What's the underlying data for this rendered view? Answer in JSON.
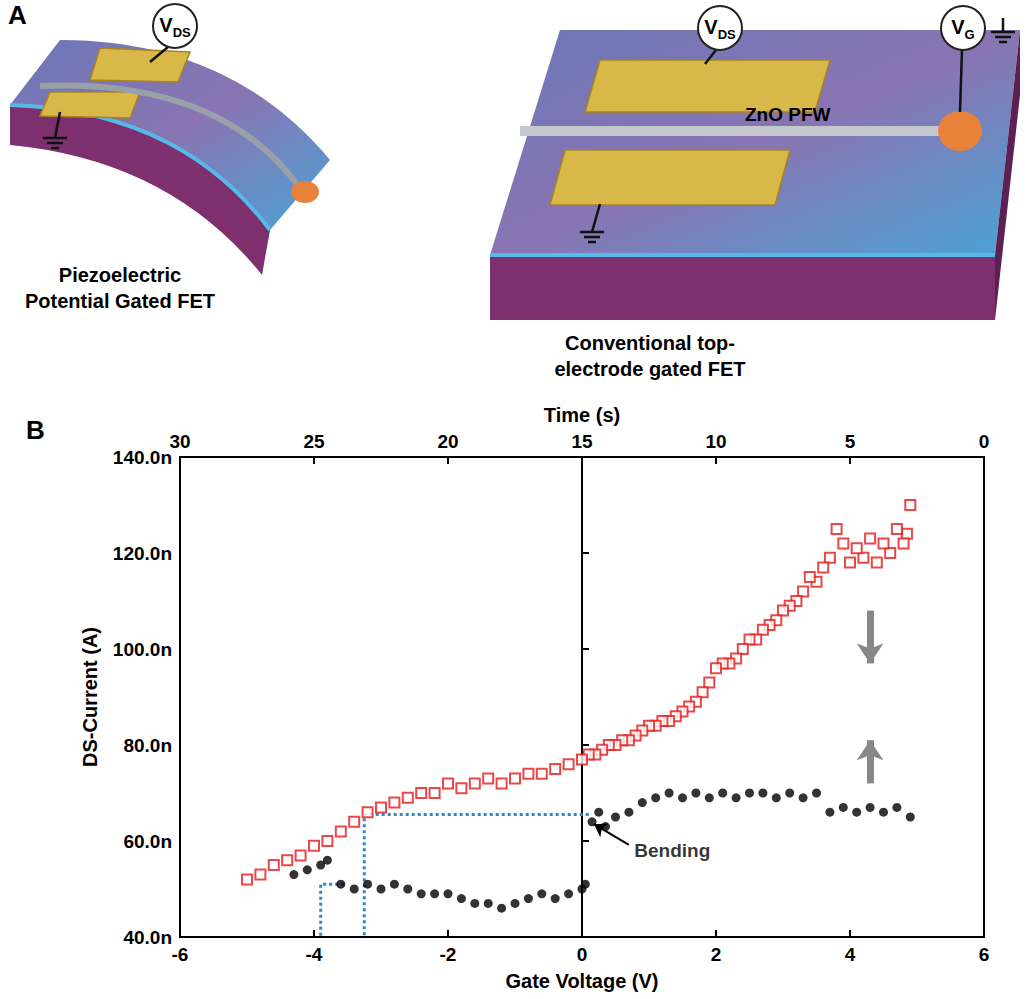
{
  "panel_a": {
    "letter": "A",
    "left": {
      "meter": {
        "main": "V",
        "sub": "DS"
      },
      "caption": [
        "Piezoelectric",
        "Potential Gated FET"
      ]
    },
    "right": {
      "meters": [
        {
          "main": "V",
          "sub": "DS"
        },
        {
          "main": "V",
          "sub": "G"
        }
      ],
      "wire_label": "ZnO PFW",
      "caption": [
        "Conventional top-",
        "electrode gated FET"
      ]
    }
  },
  "chart_data": {
    "letter": "B",
    "type": "scatter",
    "x_label": "Gate Voltage (V)",
    "x2_label": "Time (s)",
    "y_label": "DS-Current (A)",
    "xlim": [
      -6,
      6
    ],
    "xticks": [
      -6,
      -4,
      -2,
      0,
      2,
      4,
      6
    ],
    "x2lim": [
      30,
      0
    ],
    "x2ticks": [
      30,
      25,
      20,
      15,
      10,
      5,
      0
    ],
    "ylim": [
      40,
      140
    ],
    "yticks": [
      {
        "value": 40,
        "label": "40.0n"
      },
      {
        "value": 60,
        "label": "60.0n"
      },
      {
        "value": 80,
        "label": "80.0n"
      },
      {
        "value": 100,
        "label": "100.0n"
      },
      {
        "value": 120,
        "label": "120.0n"
      },
      {
        "value": 140,
        "label": "140.0n"
      }
    ],
    "grid": false,
    "series": [
      {
        "color": "#e31a1c",
        "marker": "square_open",
        "x": [
          4.9,
          4.85,
          4.8,
          4.7,
          4.6,
          4.5,
          4.4,
          4.3,
          4.2,
          4.1,
          4.0,
          3.9,
          3.8,
          3.7,
          3.6,
          3.5,
          3.4,
          3.3,
          3.2,
          3.1,
          3.0,
          2.9,
          2.8,
          2.7,
          2.6,
          2.5,
          2.4,
          2.3,
          2.2,
          2.1,
          2.0,
          1.9,
          1.8,
          1.7,
          1.6,
          1.5,
          1.4,
          1.3,
          1.2,
          1.1,
          1.0,
          0.9,
          0.8,
          0.7,
          0.6,
          0.5,
          0.4,
          0.3,
          0.2,
          0.1,
          0.0,
          -0.2,
          -0.4,
          -0.6,
          -0.8,
          -1.0,
          -1.2,
          -1.4,
          -1.6,
          -1.8,
          -2.0,
          -2.2,
          -2.4,
          -2.6,
          -2.8,
          -3.0,
          -3.2,
          -3.4,
          -3.6,
          -3.8,
          -4.0,
          -4.2,
          -4.4,
          -4.6,
          -4.8,
          -5.0
        ],
        "values": [
          130,
          124,
          122,
          125,
          120,
          122,
          118,
          123,
          119,
          121,
          118,
          122,
          125,
          119,
          117,
          114,
          115,
          112,
          110,
          109,
          108,
          106,
          105,
          104,
          102,
          102,
          100,
          98,
          97,
          97,
          96,
          93,
          91,
          89,
          88,
          87,
          86,
          85,
          85,
          84,
          84,
          83,
          82,
          81,
          81,
          80,
          80,
          79,
          78,
          78,
          77,
          76,
          75,
          74,
          74,
          73,
          72,
          73,
          72,
          71,
          72,
          70,
          70,
          69,
          68,
          67,
          66,
          64,
          62,
          60,
          59,
          57,
          56,
          55,
          53,
          52
        ]
      },
      {
        "color": "#000000",
        "marker": "circle_filled",
        "x": [
          -4.3,
          -4.1,
          -3.9,
          -3.8,
          -3.6,
          -3.4,
          -3.2,
          -3.0,
          -2.8,
          -2.6,
          -2.4,
          -2.2,
          -2.0,
          -1.8,
          -1.6,
          -1.4,
          -1.2,
          -1.0,
          -0.8,
          -0.6,
          -0.4,
          -0.2,
          0.0,
          0.05,
          0.15,
          0.25,
          0.35,
          0.5,
          0.7,
          0.9,
          1.1,
          1.3,
          1.5,
          1.7,
          1.9,
          2.1,
          2.3,
          2.5,
          2.7,
          2.9,
          3.1,
          3.3,
          3.5,
          3.7,
          3.9,
          4.1,
          4.3,
          4.5,
          4.7,
          4.9
        ],
        "values": [
          53,
          54,
          55,
          56,
          51,
          50,
          51,
          50,
          51,
          50,
          49,
          49,
          49,
          48,
          47,
          47,
          46,
          47,
          48,
          49,
          48,
          49,
          50,
          51,
          64,
          66,
          63,
          65,
          66,
          68,
          69,
          70,
          69,
          70,
          69,
          70,
          69,
          70,
          70,
          69,
          70,
          69,
          70,
          66,
          67,
          66,
          67,
          66,
          67,
          65
        ]
      }
    ],
    "guides": [
      {
        "color": "#2f86d6",
        "line_style": "dotted",
        "x": [
          0.1,
          -3.25,
          -3.25
        ],
        "y": [
          65.5,
          65.5,
          40
        ]
      },
      {
        "color": "#2f86d6",
        "line_style": "dotted",
        "x": [
          -3.55,
          -3.9,
          -3.9
        ],
        "y": [
          51,
          51,
          40
        ]
      }
    ],
    "annotations": [
      {
        "text": "Bending",
        "x": 0.75,
        "y": 58,
        "arrow_to": [
          0.18,
          63.5
        ]
      }
    ],
    "direction_arrows": [
      {
        "color": "#888888",
        "x": 4.3,
        "y": [
          108,
          97
        ]
      },
      {
        "color": "#888888",
        "x": 4.3,
        "y": [
          72,
          81
        ]
      }
    ]
  }
}
